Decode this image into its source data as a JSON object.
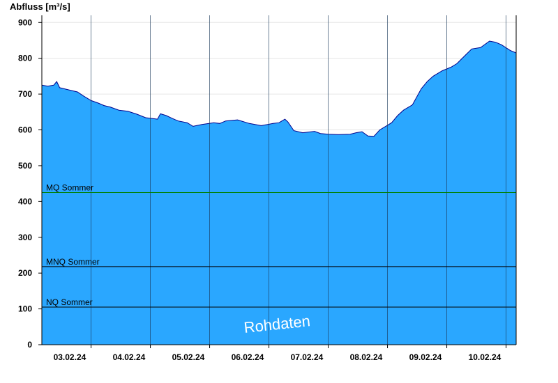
{
  "chart_data": {
    "type": "area",
    "ylabel": "Abfluss [m³/s]",
    "xlabel": "",
    "title": "",
    "ylim": [
      0,
      920
    ],
    "yticks": [
      0,
      100,
      200,
      300,
      400,
      500,
      600,
      700,
      800,
      900
    ],
    "xlim_days": [
      0,
      8.0
    ],
    "day_boundaries": [
      0.83,
      1.83,
      2.83,
      3.83,
      4.83,
      5.83,
      6.83,
      7.83
    ],
    "x_tick_labels": [
      {
        "day": 0.47,
        "label": "03.02.24"
      },
      {
        "day": 1.47,
        "label": "04.02.24"
      },
      {
        "day": 2.47,
        "label": "05.02.24"
      },
      {
        "day": 3.47,
        "label": "06.02.24"
      },
      {
        "day": 4.47,
        "label": "07.02.24"
      },
      {
        "day": 5.47,
        "label": "08.02.24"
      },
      {
        "day": 6.47,
        "label": "09.02.24"
      },
      {
        "day": 7.47,
        "label": "10.02.24"
      }
    ],
    "reference_lines": [
      {
        "name": "MQ Sommer",
        "value": 425,
        "color": "#008000"
      },
      {
        "name": "MNQ Sommer",
        "value": 218,
        "color": "#000000"
      },
      {
        "name": "NQ Sommer",
        "value": 105,
        "color": "#000000"
      }
    ],
    "series": [
      {
        "fill_color": "#2aa7ff",
        "line_color": "#00008b",
        "points": [
          [
            0.0,
            725
          ],
          [
            0.1,
            722
          ],
          [
            0.2,
            725
          ],
          [
            0.25,
            735
          ],
          [
            0.3,
            718
          ],
          [
            0.5,
            710
          ],
          [
            0.6,
            706
          ],
          [
            0.7,
            695
          ],
          [
            0.83,
            682
          ],
          [
            0.95,
            675
          ],
          [
            1.05,
            668
          ],
          [
            1.15,
            664
          ],
          [
            1.3,
            655
          ],
          [
            1.45,
            652
          ],
          [
            1.6,
            644
          ],
          [
            1.75,
            634
          ],
          [
            1.95,
            630
          ],
          [
            2.0,
            645
          ],
          [
            2.1,
            640
          ],
          [
            2.2,
            632
          ],
          [
            2.3,
            625
          ],
          [
            2.45,
            620
          ],
          [
            2.55,
            610
          ],
          [
            2.7,
            615
          ],
          [
            2.9,
            620
          ],
          [
            3.0,
            618
          ],
          [
            3.1,
            625
          ],
          [
            3.3,
            628
          ],
          [
            3.5,
            618
          ],
          [
            3.7,
            612
          ],
          [
            3.9,
            618
          ],
          [
            4.0,
            620
          ],
          [
            4.1,
            630
          ],
          [
            4.15,
            622
          ],
          [
            4.25,
            598
          ],
          [
            4.4,
            592
          ],
          [
            4.6,
            596
          ],
          [
            4.7,
            590
          ],
          [
            4.83,
            588
          ],
          [
            5.0,
            587
          ],
          [
            5.2,
            588
          ],
          [
            5.3,
            592
          ],
          [
            5.4,
            595
          ],
          [
            5.5,
            583
          ],
          [
            5.6,
            582
          ],
          [
            5.7,
            600
          ],
          [
            5.8,
            610
          ],
          [
            5.9,
            620
          ],
          [
            6.0,
            640
          ],
          [
            6.1,
            655
          ],
          [
            6.25,
            670
          ],
          [
            6.4,
            715
          ],
          [
            6.5,
            735
          ],
          [
            6.6,
            750
          ],
          [
            6.75,
            765
          ],
          [
            6.9,
            775
          ],
          [
            7.0,
            785
          ],
          [
            7.15,
            810
          ],
          [
            7.25,
            826
          ],
          [
            7.4,
            830
          ],
          [
            7.55,
            848
          ],
          [
            7.65,
            845
          ],
          [
            7.75,
            838
          ],
          [
            7.9,
            822
          ],
          [
            8.0,
            815
          ]
        ]
      }
    ]
  },
  "watermark": "Rohdaten"
}
